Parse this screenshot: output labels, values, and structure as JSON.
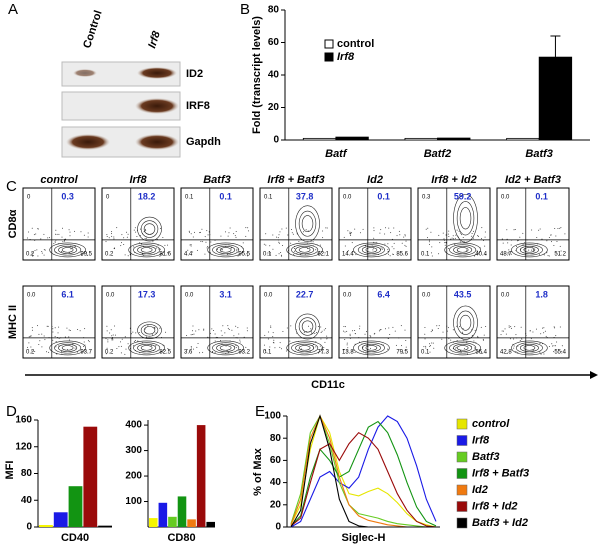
{
  "panel_labels": [
    "A",
    "B",
    "C",
    "D",
    "E"
  ],
  "blot": {
    "lanes": [
      "Control",
      "Irf8"
    ],
    "bands": [
      "ID2",
      "IRF8",
      "Gapdh"
    ]
  },
  "flow": {
    "columns": [
      "control",
      "Irf8",
      "Batf3",
      "Irf8 + Batf3",
      "Id2",
      "Irf8 + Id2",
      "Id2 + Batf3"
    ],
    "x_label": "CD11c",
    "rows": [
      {
        "label": "CD8α",
        "quadrants": [
          [
            "0",
            "0.3",
            "0.2",
            "99.5"
          ],
          [
            "0",
            "18.2",
            "0.2",
            "81.6"
          ],
          [
            "0.1",
            "0.1",
            "4.4",
            "95.5"
          ],
          [
            "0.1",
            "37.8",
            "0.1",
            "62.1"
          ],
          [
            "0.0",
            "0.1",
            "14.4",
            "85.6"
          ],
          [
            "0.3",
            "59.2",
            "0.1",
            "40.4"
          ],
          [
            "0.0",
            "0.1",
            "48.7",
            "51.2"
          ]
        ]
      },
      {
        "label": "MHC II",
        "quadrants": [
          [
            "0.0",
            "6.1",
            "0.2",
            "93.7"
          ],
          [
            "0.0",
            "17.3",
            "0.2",
            "82.5"
          ],
          [
            "0.0",
            "3.1",
            "3.6",
            "93.2"
          ],
          [
            "0.0",
            "22.7",
            "0.1",
            "77.3"
          ],
          [
            "0.0",
            "6.4",
            "13.8",
            "79.5"
          ],
          [
            "0.0",
            "43.5",
            "0.1",
            "56.4"
          ],
          [
            "0.0",
            "1.8",
            "42.8",
            "55.4"
          ]
        ]
      }
    ]
  },
  "chart_data": [
    {
      "type": "bar",
      "y_label": "Fold (transcript levels)",
      "categories": [
        "Batf",
        "Batf2",
        "Batf3"
      ],
      "series": [
        {
          "name": "control",
          "color": "#ffffff",
          "values": [
            1,
            1,
            1
          ]
        },
        {
          "name": "Irf8",
          "color": "#000000",
          "values": [
            1.8,
            1.2,
            51
          ],
          "errors": [
            null,
            null,
            13
          ]
        }
      ],
      "ylim": [
        0,
        80
      ],
      "yticks": [
        0,
        20,
        40,
        60,
        80
      ],
      "legend": "upper-left"
    },
    {
      "type": "bar",
      "y_label": "MFI",
      "x_label": "CD40",
      "categories": [
        null,
        null,
        null,
        null,
        null
      ],
      "values": [
        3,
        22,
        61,
        150,
        2
      ],
      "colors": [
        "#f5f500",
        "#1a1ae6",
        "#129412",
        "#9a0a0a",
        "#000000"
      ],
      "ylim": [
        0,
        160
      ],
      "yticks": [
        0,
        40,
        80,
        120,
        160
      ]
    },
    {
      "type": "bar",
      "x_label": "CD80",
      "categories": [
        null,
        null,
        null,
        null,
        null,
        null,
        null
      ],
      "values": [
        35,
        95,
        40,
        120,
        30,
        400,
        20
      ],
      "colors": [
        "#f5f500",
        "#1a1ae6",
        "#66cc22",
        "#129412",
        "#f07a10",
        "#9a0a0a",
        "#000000"
      ],
      "ylim": [
        0,
        420
      ],
      "yticks": [
        100,
        200,
        300,
        400
      ]
    },
    {
      "type": "line",
      "y_label": "% of Max",
      "x_label": "Siglec-H",
      "ylim": [
        0,
        100
      ],
      "yticks": [
        0,
        20,
        40,
        60,
        80,
        100
      ],
      "series": [
        {
          "name": "control",
          "color": "#e6e600",
          "values": [
            2,
            20,
            70,
            100,
            85,
            50,
            30,
            28,
            32,
            35,
            30,
            22,
            12,
            5,
            2,
            0
          ]
        },
        {
          "name": "Irf8",
          "color": "#1a1ae6",
          "values": [
            0,
            5,
            25,
            45,
            50,
            40,
            35,
            45,
            70,
            90,
            100,
            95,
            80,
            55,
            25,
            5
          ]
        },
        {
          "name": "Batf3",
          "color": "#66cc22",
          "values": [
            3,
            30,
            85,
            100,
            75,
            40,
            20,
            12,
            10,
            8,
            5,
            3,
            2,
            1,
            0,
            0
          ]
        },
        {
          "name": "Irf8 + Batf3",
          "color": "#129412",
          "values": [
            1,
            10,
            45,
            70,
            60,
            45,
            50,
            70,
            90,
            95,
            85,
            65,
            40,
            18,
            5,
            1
          ]
        },
        {
          "name": "Id2",
          "color": "#f07a10",
          "values": [
            2,
            25,
            80,
            100,
            80,
            45,
            20,
            10,
            6,
            4,
            2,
            1,
            0,
            0,
            0,
            0
          ]
        },
        {
          "name": "Irf8 + Id2",
          "color": "#9a0a0a",
          "values": [
            1,
            8,
            40,
            70,
            75,
            60,
            75,
            85,
            80,
            70,
            50,
            30,
            15,
            5,
            1,
            0
          ]
        },
        {
          "name": "Batf3 + Id2",
          "color": "#000000",
          "values": [
            0,
            15,
            75,
            100,
            70,
            25,
            5,
            1,
            0,
            0,
            0,
            0,
            0,
            0,
            0,
            0
          ]
        }
      ]
    }
  ]
}
